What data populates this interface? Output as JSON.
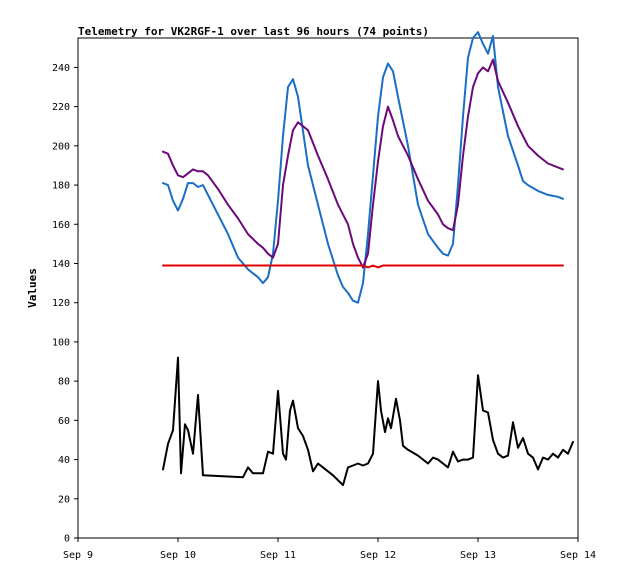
{
  "chart_data": {
    "type": "line",
    "title": "Telemetry for VK2RGF-1 over last 96 hours (74 points)",
    "xlabel": "",
    "ylabel": "Values",
    "x_unit": "date",
    "xlim": [
      "Sep 9",
      "Sep 14"
    ],
    "ylim": [
      0,
      255
    ],
    "xticks": [
      {
        "pos": 9,
        "label": "Sep 9"
      },
      {
        "pos": 10,
        "label": "Sep 10"
      },
      {
        "pos": 11,
        "label": "Sep 11"
      },
      {
        "pos": 12,
        "label": "Sep 12"
      },
      {
        "pos": 13,
        "label": "Sep 13"
      },
      {
        "pos": 14,
        "label": "Sep 14"
      }
    ],
    "yticks": [
      0,
      20,
      40,
      60,
      80,
      100,
      120,
      140,
      160,
      180,
      200,
      220,
      240
    ],
    "grid": false,
    "legend": "none",
    "series": [
      {
        "color": "#1a6fc4",
        "points": [
          [
            9.85,
            181
          ],
          [
            9.9,
            180
          ],
          [
            9.95,
            172
          ],
          [
            10.0,
            167
          ],
          [
            10.05,
            173
          ],
          [
            10.1,
            181
          ],
          [
            10.15,
            181
          ],
          [
            10.2,
            179
          ],
          [
            10.25,
            180
          ],
          [
            10.3,
            175
          ],
          [
            10.4,
            165
          ],
          [
            10.5,
            155
          ],
          [
            10.6,
            143
          ],
          [
            10.7,
            137
          ],
          [
            10.8,
            133
          ],
          [
            10.85,
            130
          ],
          [
            10.9,
            133
          ],
          [
            10.95,
            145
          ],
          [
            11.0,
            172
          ],
          [
            11.05,
            205
          ],
          [
            11.1,
            230
          ],
          [
            11.15,
            234
          ],
          [
            11.2,
            225
          ],
          [
            11.3,
            190
          ],
          [
            11.4,
            170
          ],
          [
            11.5,
            150
          ],
          [
            11.6,
            134
          ],
          [
            11.65,
            128
          ],
          [
            11.7,
            125
          ],
          [
            11.75,
            121
          ],
          [
            11.8,
            120
          ],
          [
            11.85,
            130
          ],
          [
            11.9,
            155
          ],
          [
            11.95,
            185
          ],
          [
            12.0,
            215
          ],
          [
            12.05,
            235
          ],
          [
            12.1,
            242
          ],
          [
            12.15,
            238
          ],
          [
            12.2,
            225
          ],
          [
            12.3,
            200
          ],
          [
            12.4,
            170
          ],
          [
            12.5,
            155
          ],
          [
            12.6,
            148
          ],
          [
            12.65,
            145
          ],
          [
            12.7,
            144
          ],
          [
            12.75,
            150
          ],
          [
            12.8,
            180
          ],
          [
            12.85,
            215
          ],
          [
            12.9,
            245
          ],
          [
            12.95,
            255
          ],
          [
            13.0,
            258
          ],
          [
            13.05,
            252
          ],
          [
            13.1,
            247
          ],
          [
            13.15,
            256
          ],
          [
            13.2,
            230
          ],
          [
            13.3,
            205
          ],
          [
            13.4,
            190
          ],
          [
            13.45,
            182
          ],
          [
            13.5,
            180
          ],
          [
            13.6,
            177
          ],
          [
            13.7,
            175
          ],
          [
            13.8,
            174
          ],
          [
            13.85,
            173
          ]
        ]
      },
      {
        "color": "#6b0a78",
        "points": [
          [
            9.85,
            197
          ],
          [
            9.9,
            196
          ],
          [
            9.95,
            190
          ],
          [
            10.0,
            185
          ],
          [
            10.05,
            184
          ],
          [
            10.1,
            186
          ],
          [
            10.15,
            188
          ],
          [
            10.2,
            187
          ],
          [
            10.25,
            187
          ],
          [
            10.3,
            185
          ],
          [
            10.4,
            178
          ],
          [
            10.5,
            170
          ],
          [
            10.6,
            163
          ],
          [
            10.7,
            155
          ],
          [
            10.8,
            150
          ],
          [
            10.85,
            148
          ],
          [
            10.9,
            145
          ],
          [
            10.95,
            143
          ],
          [
            11.0,
            150
          ],
          [
            11.05,
            180
          ],
          [
            11.1,
            195
          ],
          [
            11.15,
            208
          ],
          [
            11.2,
            212
          ],
          [
            11.3,
            208
          ],
          [
            11.4,
            195
          ],
          [
            11.5,
            183
          ],
          [
            11.6,
            170
          ],
          [
            11.7,
            160
          ],
          [
            11.75,
            150
          ],
          [
            11.8,
            143
          ],
          [
            11.85,
            138
          ],
          [
            11.9,
            145
          ],
          [
            11.95,
            170
          ],
          [
            12.0,
            192
          ],
          [
            12.05,
            210
          ],
          [
            12.1,
            220
          ],
          [
            12.15,
            213
          ],
          [
            12.2,
            205
          ],
          [
            12.3,
            195
          ],
          [
            12.4,
            183
          ],
          [
            12.5,
            172
          ],
          [
            12.6,
            165
          ],
          [
            12.65,
            160
          ],
          [
            12.7,
            158
          ],
          [
            12.75,
            157
          ],
          [
            12.8,
            170
          ],
          [
            12.85,
            195
          ],
          [
            12.9,
            215
          ],
          [
            12.95,
            230
          ],
          [
            13.0,
            237
          ],
          [
            13.05,
            240
          ],
          [
            13.1,
            238
          ],
          [
            13.15,
            244
          ],
          [
            13.2,
            233
          ],
          [
            13.3,
            222
          ],
          [
            13.4,
            210
          ],
          [
            13.45,
            205
          ],
          [
            13.5,
            200
          ],
          [
            13.6,
            195
          ],
          [
            13.7,
            191
          ],
          [
            13.8,
            189
          ],
          [
            13.85,
            188
          ]
        ]
      },
      {
        "color": "#e00000",
        "points": [
          [
            9.85,
            139
          ],
          [
            11.85,
            139
          ],
          [
            11.9,
            138
          ],
          [
            11.95,
            139
          ],
          [
            12.0,
            138
          ],
          [
            12.05,
            139
          ],
          [
            12.1,
            139
          ],
          [
            13.85,
            139
          ]
        ]
      },
      {
        "color": "#000000",
        "points": [
          [
            9.85,
            35
          ],
          [
            9.9,
            48
          ],
          [
            9.95,
            55
          ],
          [
            10.0,
            92
          ],
          [
            10.03,
            33
          ],
          [
            10.07,
            58
          ],
          [
            10.1,
            55
          ],
          [
            10.15,
            43
          ],
          [
            10.2,
            73
          ],
          [
            10.25,
            32
          ],
          [
            10.65,
            31
          ],
          [
            10.7,
            36
          ],
          [
            10.75,
            33
          ],
          [
            10.85,
            33
          ],
          [
            10.9,
            44
          ],
          [
            10.95,
            43
          ],
          [
            11.0,
            75
          ],
          [
            11.05,
            43
          ],
          [
            11.08,
            40
          ],
          [
            11.12,
            65
          ],
          [
            11.15,
            70
          ],
          [
            11.2,
            56
          ],
          [
            11.25,
            52
          ],
          [
            11.3,
            45
          ],
          [
            11.35,
            34
          ],
          [
            11.4,
            38
          ],
          [
            11.45,
            36
          ],
          [
            11.55,
            32
          ],
          [
            11.65,
            27
          ],
          [
            11.7,
            36
          ],
          [
            11.75,
            37
          ],
          [
            11.8,
            38
          ],
          [
            11.85,
            37
          ],
          [
            11.9,
            38
          ],
          [
            11.95,
            43
          ],
          [
            12.0,
            80
          ],
          [
            12.03,
            65
          ],
          [
            12.07,
            54
          ],
          [
            12.1,
            61
          ],
          [
            12.13,
            56
          ],
          [
            12.18,
            71
          ],
          [
            12.22,
            60
          ],
          [
            12.25,
            47
          ],
          [
            12.3,
            45
          ],
          [
            12.4,
            42
          ],
          [
            12.5,
            38
          ],
          [
            12.55,
            41
          ],
          [
            12.6,
            40
          ],
          [
            12.65,
            38
          ],
          [
            12.7,
            36
          ],
          [
            12.75,
            44
          ],
          [
            12.8,
            39
          ],
          [
            12.85,
            40
          ],
          [
            12.9,
            40
          ],
          [
            12.95,
            41
          ],
          [
            13.0,
            83
          ],
          [
            13.05,
            65
          ],
          [
            13.1,
            64
          ],
          [
            13.15,
            50
          ],
          [
            13.2,
            43
          ],
          [
            13.25,
            41
          ],
          [
            13.3,
            42
          ],
          [
            13.35,
            59
          ],
          [
            13.4,
            46
          ],
          [
            13.45,
            51
          ],
          [
            13.5,
            43
          ],
          [
            13.55,
            41
          ],
          [
            13.6,
            35
          ],
          [
            13.65,
            41
          ],
          [
            13.7,
            40
          ],
          [
            13.75,
            43
          ],
          [
            13.8,
            41
          ],
          [
            13.85,
            45
          ],
          [
            13.9,
            43
          ],
          [
            13.95,
            49
          ]
        ]
      }
    ]
  }
}
